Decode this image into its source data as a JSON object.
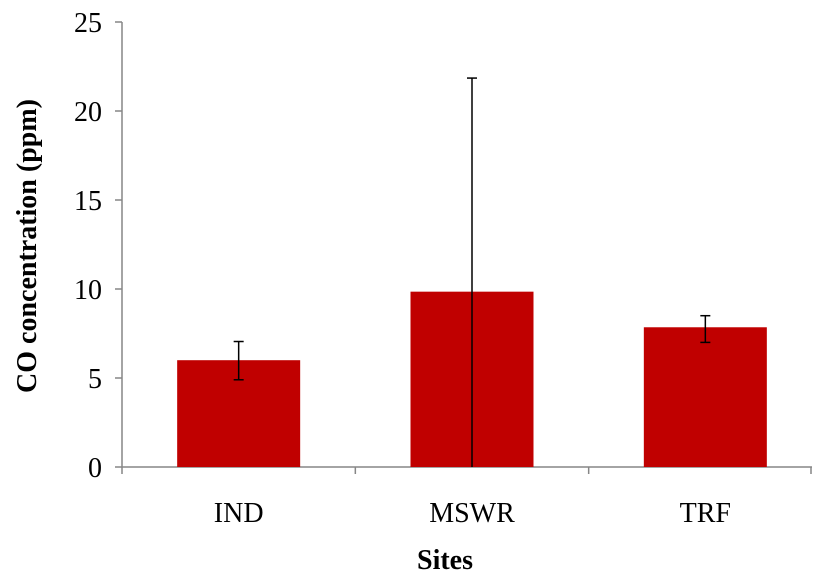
{
  "chart_data": {
    "type": "bar",
    "title": "",
    "xlabel": "Sites",
    "ylabel": "CO concentration (ppm)",
    "categories": [
      "IND",
      "MSWR",
      "TRF"
    ],
    "values": [
      6.0,
      9.85,
      7.85
    ],
    "error_low": [
      4.9,
      0,
      7.0
    ],
    "error_high": [
      7.05,
      21.85,
      8.5
    ],
    "ylim": [
      0,
      25
    ],
    "yticks": [
      0,
      5,
      10,
      15,
      20,
      25
    ],
    "grid": false,
    "legend": "none",
    "bar_color": "#c00000"
  }
}
